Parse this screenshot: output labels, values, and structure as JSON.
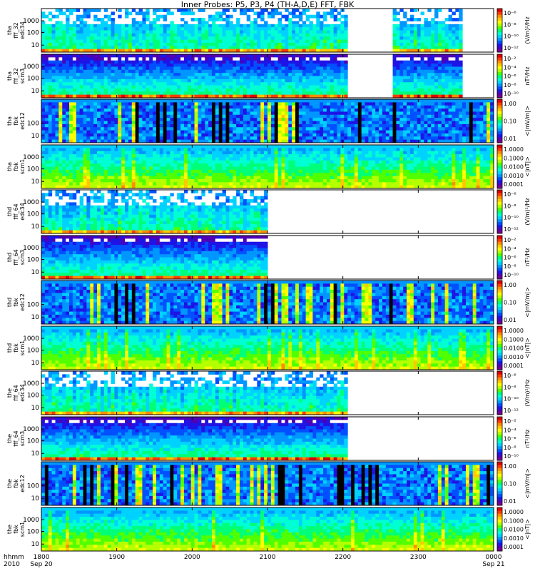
{
  "title": "Inner Probes: P5, P3, P4 (TH-A,D,E) FFT, FBK",
  "colors": {
    "ct": [
      "#7a008a",
      "#5000b4",
      "#1e14e6",
      "#0050ff",
      "#0096ff",
      "#00d2ff",
      "#00ffd2",
      "#00ff78",
      "#50ff00",
      "#b4ff00",
      "#ffff00",
      "#ffc800",
      "#ff8c00",
      "#ff3c00",
      "#dc0000"
    ],
    "blank": "#ffffff",
    "dark": "#000000"
  },
  "chart_data": {
    "type": "heatmap",
    "x_ticks": [
      "1800",
      "1900",
      "2000",
      "2100",
      "2200",
      "2300",
      "0000"
    ],
    "x_footer_left": [
      "hhmm",
      "2010"
    ],
    "x_dates": [
      {
        "at": "1800",
        "label": "Sep 20"
      },
      {
        "at": "0000",
        "label": "Sep 21"
      }
    ],
    "panels": [
      {
        "label": [
          "tha",
          "fff_32",
          "edc34"
        ],
        "yticks": [
          "1000",
          "100",
          "10"
        ],
        "cbar_label": "(V/m)²/Hz",
        "cbar_ticks": [
          "10⁻⁶",
          "10⁻⁸",
          "10⁻¹⁰",
          "10⁻¹²"
        ],
        "data_ranges": [
          [
            0,
            0.68
          ],
          [
            0.78,
            0.93
          ]
        ],
        "style": "sparse"
      },
      {
        "label": [
          "tha",
          "fff_32",
          "scm3"
        ],
        "yticks": [
          "1000",
          "100",
          "10"
        ],
        "cbar_label": "nT²/Hz",
        "cbar_ticks": [
          "10⁻²",
          "10⁻⁴",
          "10⁻⁶",
          "10⁻⁸",
          "10⁻¹⁰"
        ],
        "data_ranges": [
          [
            0,
            0.68
          ],
          [
            0.78,
            0.93
          ]
        ],
        "style": "scm"
      },
      {
        "label": [
          "tha",
          "fbk",
          "edc12"
        ],
        "yticks": [
          "100",
          "10"
        ],
        "cbar_label": "<|mV/m|>",
        "cbar_ticks": [
          "1.00",
          "0.10",
          "0.01"
        ],
        "data_ranges": [
          [
            0,
            1
          ]
        ],
        "style": "fbk_e"
      },
      {
        "label": [
          "tha",
          "fbk",
          "scm1"
        ],
        "yticks": [
          "1000",
          "100",
          "10"
        ],
        "cbar_label": "<|nT|>",
        "cbar_ticks": [
          "1.0000",
          "0.1000",
          "0.0100",
          "0.0010",
          "0.0001"
        ],
        "data_ranges": [
          [
            0,
            1
          ]
        ],
        "style": "fbk_b"
      },
      {
        "label": [
          "thd",
          "fff_64",
          "edc34"
        ],
        "yticks": [
          "1000",
          "100",
          "10"
        ],
        "cbar_label": "(V/m)²/Hz",
        "cbar_ticks": [
          "10⁻⁶",
          "10⁻⁸",
          "10⁻¹⁰",
          "10⁻¹²"
        ],
        "data_ranges": [
          [
            0,
            0.5
          ]
        ],
        "style": "sparse"
      },
      {
        "label": [
          "thd",
          "fff_64",
          "scm3"
        ],
        "yticks": [
          "1000",
          "100",
          "10"
        ],
        "cbar_label": "nT²/Hz",
        "cbar_ticks": [
          "10⁻²",
          "10⁻⁴",
          "10⁻⁶",
          "10⁻⁸",
          "10⁻¹⁰"
        ],
        "data_ranges": [
          [
            0,
            0.5
          ]
        ],
        "style": "scm"
      },
      {
        "label": [
          "thd",
          "fbk",
          "edc12"
        ],
        "yticks": [
          "100",
          "10"
        ],
        "cbar_label": "<|mV/m|>",
        "cbar_ticks": [
          "1.00",
          "0.10",
          "0.01"
        ],
        "data_ranges": [
          [
            0,
            1
          ]
        ],
        "style": "fbk_e"
      },
      {
        "label": [
          "thd",
          "fbk",
          "scm1"
        ],
        "yticks": [
          "1000",
          "100",
          "10"
        ],
        "cbar_label": "<|nT|>",
        "cbar_ticks": [
          "1.0000",
          "0.1000",
          "0.0100",
          "0.0010",
          "0.0001"
        ],
        "data_ranges": [
          [
            0,
            1
          ]
        ],
        "style": "fbk_b"
      },
      {
        "label": [
          "the",
          "fff_64",
          "edc34"
        ],
        "yticks": [
          "1000",
          "100",
          "10"
        ],
        "cbar_label": "(V/m)²/Hz",
        "cbar_ticks": [
          "10⁻⁶",
          "10⁻⁸",
          "10⁻¹⁰",
          "10⁻¹²"
        ],
        "data_ranges": [
          [
            0,
            0.68
          ]
        ],
        "style": "sparse"
      },
      {
        "label": [
          "the",
          "fff_64",
          "scm3"
        ],
        "yticks": [
          "1000",
          "100",
          "10"
        ],
        "cbar_label": "nT²/Hz",
        "cbar_ticks": [
          "10⁻²",
          "10⁻⁴",
          "10⁻⁶",
          "10⁻⁸",
          "10⁻¹⁰"
        ],
        "data_ranges": [
          [
            0,
            0.68
          ]
        ],
        "style": "scm"
      },
      {
        "label": [
          "the",
          "fbk",
          "edc12"
        ],
        "yticks": [
          "100",
          "10"
        ],
        "cbar_label": "<|mV/m|>",
        "cbar_ticks": [
          "1.00",
          "0.10",
          "0.01"
        ],
        "data_ranges": [
          [
            0,
            1
          ]
        ],
        "style": "fbk_e"
      },
      {
        "label": [
          "the",
          "fbk",
          "scm1"
        ],
        "yticks": [
          "1000",
          "100",
          "10"
        ],
        "cbar_label": "<|nT|>",
        "cbar_ticks": [
          "1.0000",
          "0.1000",
          "0.0100",
          "0.0010",
          "0.0001"
        ],
        "data_ranges": [
          [
            0,
            1
          ]
        ],
        "style": "fbk_b"
      }
    ]
  }
}
